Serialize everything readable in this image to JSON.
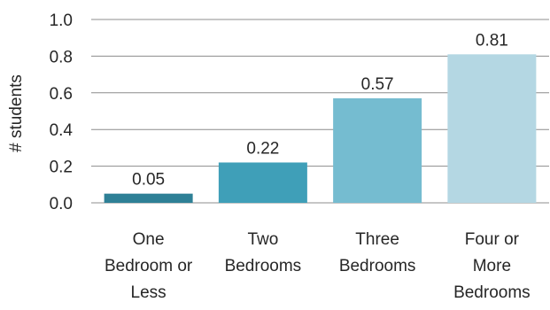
{
  "chart_data": {
    "type": "bar",
    "title": "",
    "xlabel": "",
    "ylabel": "# students",
    "ylim": [
      0,
      1.0
    ],
    "yticks": [
      "0.0",
      "0.2",
      "0.4",
      "0.6",
      "0.8",
      "1.0"
    ],
    "grid": true,
    "legend": "none",
    "categories": [
      [
        "One",
        "Bedroom or",
        "Less"
      ],
      [
        "Two",
        "Bedrooms"
      ],
      [
        "Three",
        "Bedrooms"
      ],
      [
        "Four or",
        "More",
        "Bedrooms"
      ]
    ],
    "values": [
      0.05,
      0.22,
      0.57,
      0.81
    ],
    "value_labels": [
      "0.05",
      "0.22",
      "0.57",
      "0.81"
    ],
    "colors": [
      "#2e8096",
      "#3f9fb8",
      "#75bcd0",
      "#b4d7e3"
    ]
  }
}
